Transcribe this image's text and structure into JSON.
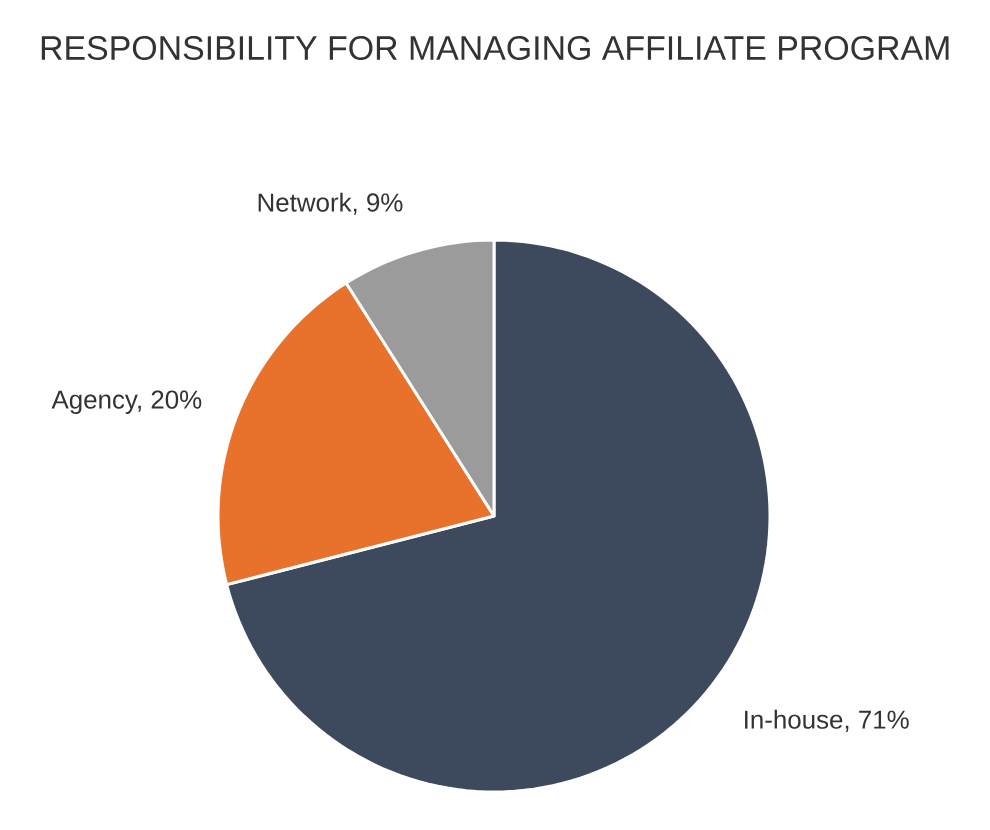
{
  "chart_data": {
    "type": "pie",
    "title": "RESPONSIBILITY FOR MANAGING AFFILIATE PROGRAM",
    "categories": [
      null,
      null,
      null
    ],
    "values": [
      71,
      20,
      9
    ],
    "value_labels": [
      "In-house, 71%",
      "Agency, 20%",
      "Network, 9%"
    ],
    "colors": [
      "#3d4a5e",
      "#e8722c",
      "#9b9b9b"
    ]
  }
}
